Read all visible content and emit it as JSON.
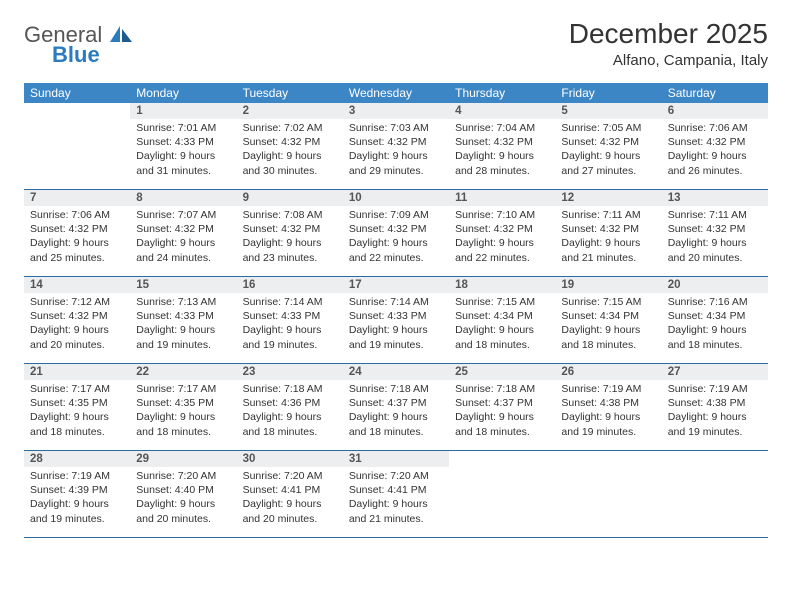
{
  "brand": {
    "line1": "General",
    "line2": "Blue"
  },
  "title": "December 2025",
  "location": "Alfano, Campania, Italy",
  "weekdays": [
    "Sunday",
    "Monday",
    "Tuesday",
    "Wednesday",
    "Thursday",
    "Friday",
    "Saturday"
  ],
  "colors": {
    "header_bg": "#3d86c6",
    "header_text": "#ffffff",
    "daynum_bg": "#eceeef",
    "row_border": "#2b6aa5",
    "brand_gray": "#6b6b6b",
    "brand_blue": "#2b7bbf"
  },
  "first_weekday_offset": 1,
  "days": [
    {
      "n": 1,
      "sunrise": "7:01 AM",
      "sunset": "4:33 PM",
      "dl": "9 hours and 31 minutes."
    },
    {
      "n": 2,
      "sunrise": "7:02 AM",
      "sunset": "4:32 PM",
      "dl": "9 hours and 30 minutes."
    },
    {
      "n": 3,
      "sunrise": "7:03 AM",
      "sunset": "4:32 PM",
      "dl": "9 hours and 29 minutes."
    },
    {
      "n": 4,
      "sunrise": "7:04 AM",
      "sunset": "4:32 PM",
      "dl": "9 hours and 28 minutes."
    },
    {
      "n": 5,
      "sunrise": "7:05 AM",
      "sunset": "4:32 PM",
      "dl": "9 hours and 27 minutes."
    },
    {
      "n": 6,
      "sunrise": "7:06 AM",
      "sunset": "4:32 PM",
      "dl": "9 hours and 26 minutes."
    },
    {
      "n": 7,
      "sunrise": "7:06 AM",
      "sunset": "4:32 PM",
      "dl": "9 hours and 25 minutes."
    },
    {
      "n": 8,
      "sunrise": "7:07 AM",
      "sunset": "4:32 PM",
      "dl": "9 hours and 24 minutes."
    },
    {
      "n": 9,
      "sunrise": "7:08 AM",
      "sunset": "4:32 PM",
      "dl": "9 hours and 23 minutes."
    },
    {
      "n": 10,
      "sunrise": "7:09 AM",
      "sunset": "4:32 PM",
      "dl": "9 hours and 22 minutes."
    },
    {
      "n": 11,
      "sunrise": "7:10 AM",
      "sunset": "4:32 PM",
      "dl": "9 hours and 22 minutes."
    },
    {
      "n": 12,
      "sunrise": "7:11 AM",
      "sunset": "4:32 PM",
      "dl": "9 hours and 21 minutes."
    },
    {
      "n": 13,
      "sunrise": "7:11 AM",
      "sunset": "4:32 PM",
      "dl": "9 hours and 20 minutes."
    },
    {
      "n": 14,
      "sunrise": "7:12 AM",
      "sunset": "4:32 PM",
      "dl": "9 hours and 20 minutes."
    },
    {
      "n": 15,
      "sunrise": "7:13 AM",
      "sunset": "4:33 PM",
      "dl": "9 hours and 19 minutes."
    },
    {
      "n": 16,
      "sunrise": "7:14 AM",
      "sunset": "4:33 PM",
      "dl": "9 hours and 19 minutes."
    },
    {
      "n": 17,
      "sunrise": "7:14 AM",
      "sunset": "4:33 PM",
      "dl": "9 hours and 19 minutes."
    },
    {
      "n": 18,
      "sunrise": "7:15 AM",
      "sunset": "4:34 PM",
      "dl": "9 hours and 18 minutes."
    },
    {
      "n": 19,
      "sunrise": "7:15 AM",
      "sunset": "4:34 PM",
      "dl": "9 hours and 18 minutes."
    },
    {
      "n": 20,
      "sunrise": "7:16 AM",
      "sunset": "4:34 PM",
      "dl": "9 hours and 18 minutes."
    },
    {
      "n": 21,
      "sunrise": "7:17 AM",
      "sunset": "4:35 PM",
      "dl": "9 hours and 18 minutes."
    },
    {
      "n": 22,
      "sunrise": "7:17 AM",
      "sunset": "4:35 PM",
      "dl": "9 hours and 18 minutes."
    },
    {
      "n": 23,
      "sunrise": "7:18 AM",
      "sunset": "4:36 PM",
      "dl": "9 hours and 18 minutes."
    },
    {
      "n": 24,
      "sunrise": "7:18 AM",
      "sunset": "4:37 PM",
      "dl": "9 hours and 18 minutes."
    },
    {
      "n": 25,
      "sunrise": "7:18 AM",
      "sunset": "4:37 PM",
      "dl": "9 hours and 18 minutes."
    },
    {
      "n": 26,
      "sunrise": "7:19 AM",
      "sunset": "4:38 PM",
      "dl": "9 hours and 19 minutes."
    },
    {
      "n": 27,
      "sunrise": "7:19 AM",
      "sunset": "4:38 PM",
      "dl": "9 hours and 19 minutes."
    },
    {
      "n": 28,
      "sunrise": "7:19 AM",
      "sunset": "4:39 PM",
      "dl": "9 hours and 19 minutes."
    },
    {
      "n": 29,
      "sunrise": "7:20 AM",
      "sunset": "4:40 PM",
      "dl": "9 hours and 20 minutes."
    },
    {
      "n": 30,
      "sunrise": "7:20 AM",
      "sunset": "4:41 PM",
      "dl": "9 hours and 20 minutes."
    },
    {
      "n": 31,
      "sunrise": "7:20 AM",
      "sunset": "4:41 PM",
      "dl": "9 hours and 21 minutes."
    }
  ],
  "labels": {
    "sunrise": "Sunrise:",
    "sunset": "Sunset:",
    "daylight": "Daylight:"
  }
}
